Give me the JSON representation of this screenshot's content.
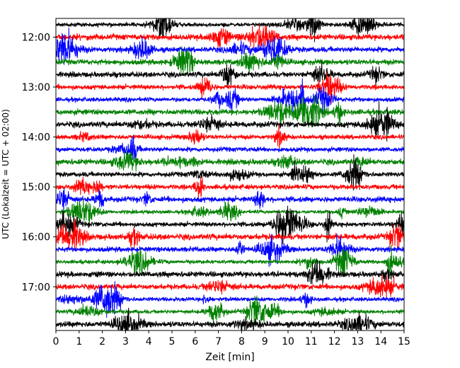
{
  "chart_data": {
    "type": "line",
    "xlabel": "Zeit  [min]",
    "ylabel": "UTC (Lokalzeit = UTC + 02:00)",
    "xlim": [
      0,
      15
    ],
    "x_ticks": [
      "0",
      "1",
      "2",
      "3",
      "4",
      "5",
      "6",
      "7",
      "8",
      "9",
      "10",
      "11",
      "12",
      "13",
      "14",
      "15"
    ],
    "y_ticks": [
      "12:00",
      "13:00",
      "14:00",
      "15:00",
      "16:00",
      "17:00"
    ],
    "trace_start": "11:45",
    "trace_end": "17:45",
    "trace_interval_min": 15,
    "trace_colors": [
      "#000000",
      "#ff0000",
      "#0000ff",
      "#008000"
    ],
    "grid": false,
    "legend": "none"
  }
}
